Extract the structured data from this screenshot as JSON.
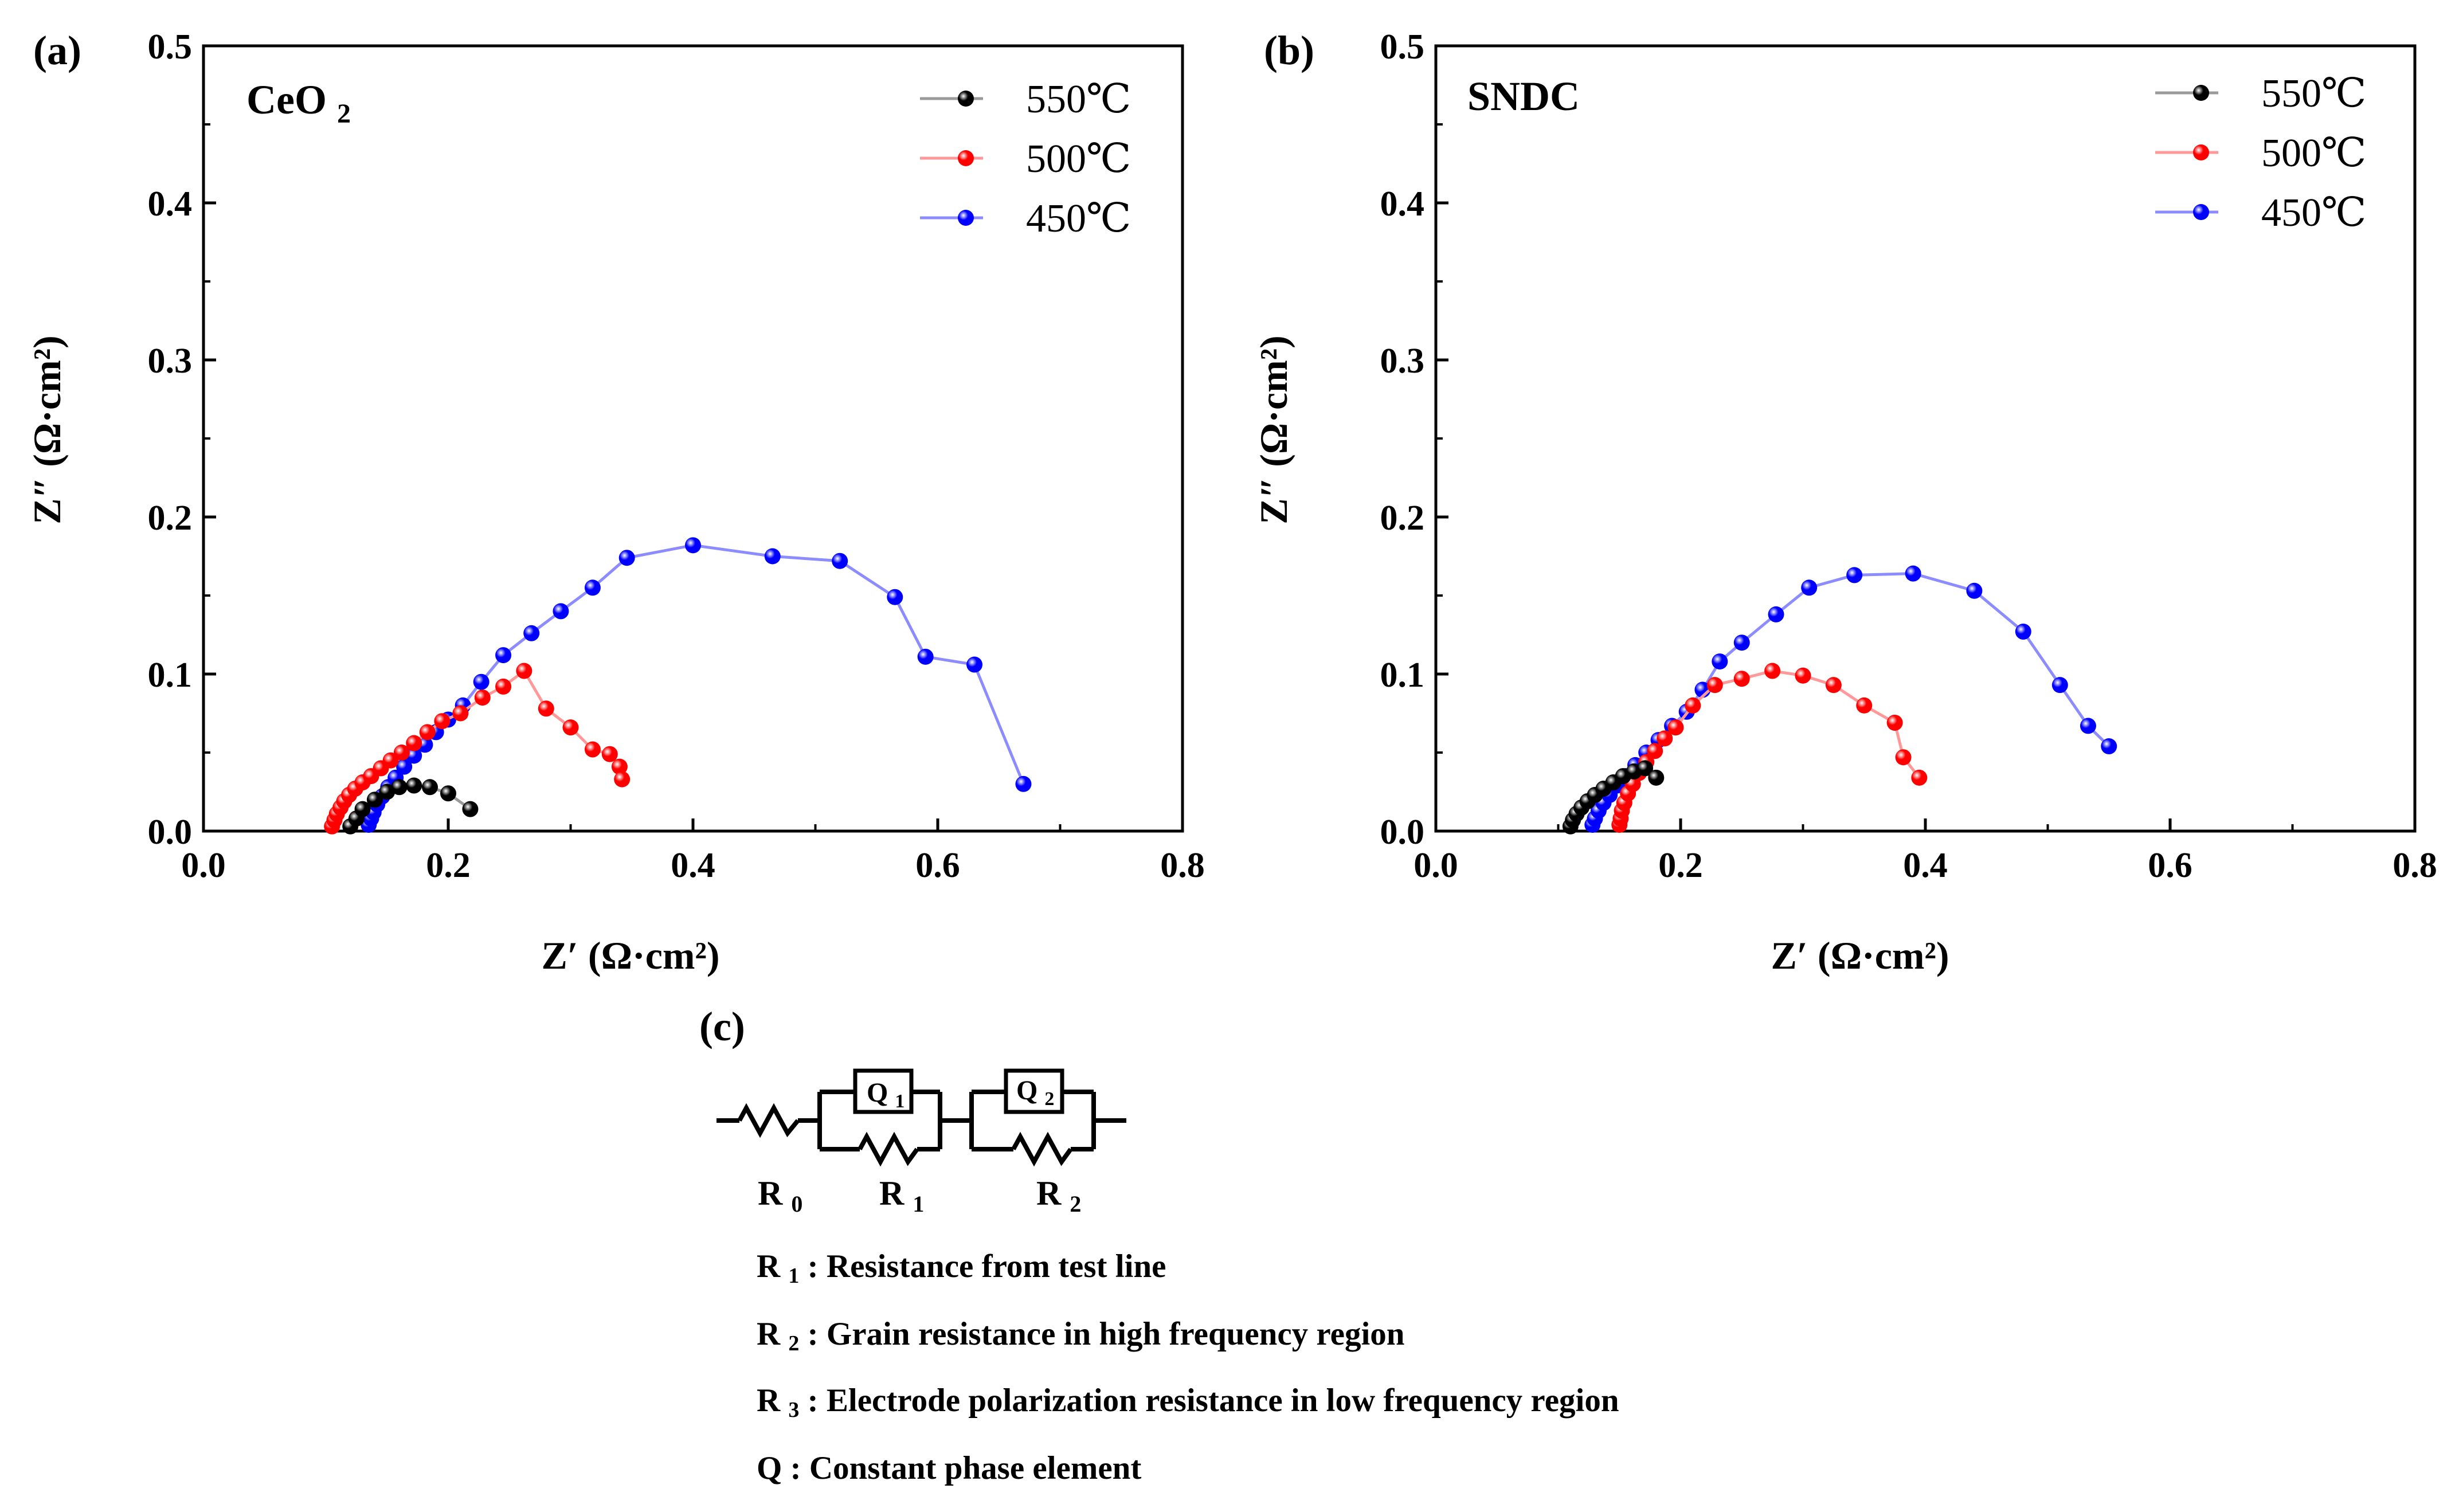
{
  "figure_labels": {
    "a": "(a)",
    "b": "(b)",
    "c": "(c)"
  },
  "chart_data": [
    {
      "id": "a",
      "type": "scatter",
      "mode": "lines+markers",
      "panel_label": "(a)",
      "inset_title": "CeO",
      "inset_title_subscript": "2",
      "xlabel": "Z′ (Ω·cm²)",
      "ylabel": "Z″ (Ω·cm²)",
      "xlim": [
        0,
        0.8
      ],
      "ylim": [
        0,
        0.5
      ],
      "xticks": [
        "0.0",
        "0.2",
        "0.4",
        "0.6",
        "0.8"
      ],
      "yticks": [
        "0.0",
        "0.1",
        "0.2",
        "0.3",
        "0.4",
        "0.5"
      ],
      "legend_position": "top-right",
      "series": [
        {
          "name": "550℃",
          "color": "#000000",
          "line_color": "#9a9a9a",
          "x": [
            0.12,
            0.125,
            0.13,
            0.14,
            0.15,
            0.16,
            0.172,
            0.185,
            0.2,
            0.218
          ],
          "y": [
            0.003,
            0.008,
            0.014,
            0.02,
            0.025,
            0.028,
            0.029,
            0.028,
            0.024,
            0.014
          ]
        },
        {
          "name": "500℃",
          "color": "#ff0000",
          "line_color": "#ff9999",
          "x": [
            0.105,
            0.107,
            0.109,
            0.112,
            0.115,
            0.119,
            0.124,
            0.13,
            0.137,
            0.145,
            0.153,
            0.162,
            0.172,
            0.183,
            0.195,
            0.21,
            0.228,
            0.245,
            0.262,
            0.28,
            0.3,
            0.318,
            0.332,
            0.34,
            0.342
          ],
          "y": [
            0.003,
            0.007,
            0.011,
            0.015,
            0.019,
            0.023,
            0.027,
            0.031,
            0.035,
            0.04,
            0.045,
            0.05,
            0.056,
            0.063,
            0.07,
            0.075,
            0.085,
            0.092,
            0.102,
            0.078,
            0.066,
            0.052,
            0.049,
            0.041,
            0.033
          ]
        },
        {
          "name": "450℃",
          "color": "#0000ff",
          "line_color": "#8c8cff",
          "x": [
            0.135,
            0.137,
            0.139,
            0.142,
            0.146,
            0.151,
            0.157,
            0.164,
            0.172,
            0.181,
            0.19,
            0.2,
            0.212,
            0.227,
            0.245,
            0.268,
            0.292,
            0.318,
            0.346,
            0.4,
            0.465,
            0.52,
            0.565,
            0.59,
            0.63,
            0.67
          ],
          "y": [
            0.004,
            0.008,
            0.012,
            0.017,
            0.022,
            0.028,
            0.034,
            0.041,
            0.048,
            0.055,
            0.063,
            0.071,
            0.08,
            0.095,
            0.112,
            0.126,
            0.14,
            0.155,
            0.174,
            0.182,
            0.175,
            0.172,
            0.149,
            0.111,
            0.106,
            0.03
          ]
        }
      ]
    },
    {
      "id": "b",
      "type": "scatter",
      "mode": "lines+markers",
      "panel_label": "(b)",
      "inset_title": "SNDC",
      "inset_title_subscript": "",
      "xlabel": "Z′ (Ω·cm²)",
      "ylabel": "Z″ (Ω·cm²)",
      "xlim": [
        0,
        0.8
      ],
      "ylim": [
        0,
        0.5
      ],
      "xticks": [
        "0.0",
        "0.2",
        "0.4",
        "0.6",
        "0.8"
      ],
      "yticks": [
        "0.0",
        "0.1",
        "0.2",
        "0.3",
        "0.4",
        "0.5"
      ],
      "legend_position": "top-right",
      "series": [
        {
          "name": "550℃",
          "color": "#000000",
          "line_color": "#9a9a9a",
          "x": [
            0.11,
            0.112,
            0.115,
            0.119,
            0.124,
            0.13,
            0.137,
            0.145,
            0.153,
            0.162,
            0.171,
            0.18
          ],
          "y": [
            0.003,
            0.007,
            0.011,
            0.015,
            0.019,
            0.023,
            0.027,
            0.031,
            0.035,
            0.038,
            0.04,
            0.034
          ]
        },
        {
          "name": "500℃",
          "color": "#ff0000",
          "line_color": "#ff9999",
          "x": [
            0.15,
            0.151,
            0.152,
            0.154,
            0.157,
            0.161,
            0.166,
            0.172,
            0.179,
            0.187,
            0.196,
            0.21,
            0.228,
            0.25,
            0.275,
            0.3,
            0.325,
            0.35,
            0.375,
            0.382,
            0.395
          ],
          "y": [
            0.004,
            0.008,
            0.013,
            0.018,
            0.024,
            0.03,
            0.037,
            0.044,
            0.051,
            0.059,
            0.066,
            0.08,
            0.093,
            0.097,
            0.102,
            0.099,
            0.093,
            0.08,
            0.069,
            0.047,
            0.034
          ]
        },
        {
          "name": "450℃",
          "color": "#0000ff",
          "line_color": "#8c8cff",
          "x": [
            0.128,
            0.13,
            0.133,
            0.137,
            0.142,
            0.148,
            0.155,
            0.163,
            0.172,
            0.182,
            0.193,
            0.205,
            0.218,
            0.232,
            0.25,
            0.278,
            0.305,
            0.342,
            0.39,
            0.44,
            0.48,
            0.51,
            0.533,
            0.55
          ],
          "y": [
            0.004,
            0.008,
            0.013,
            0.018,
            0.023,
            0.029,
            0.035,
            0.042,
            0.05,
            0.058,
            0.067,
            0.076,
            0.09,
            0.108,
            0.12,
            0.138,
            0.155,
            0.163,
            0.164,
            0.153,
            0.127,
            0.093,
            0.067,
            0.054
          ]
        }
      ]
    }
  ],
  "circuit": {
    "labels": {
      "r0_main": "R",
      "r0_sub": "0",
      "r1_main": "R",
      "r1_sub": "1",
      "r2_main": "R",
      "r2_sub": "2",
      "q1_main": "Q",
      "q1_sub": "1",
      "q2_main": "Q",
      "q2_sub": "2"
    },
    "notes": [
      {
        "symbol": "R",
        "sub": "1",
        "text": ": Resistance from test line"
      },
      {
        "symbol": "R",
        "sub": "2",
        "text": ": Grain resistance in high frequency region"
      },
      {
        "symbol": "R",
        "sub": "3",
        "text": ": Electrode polarization resistance in low frequency region"
      },
      {
        "symbol": "Q",
        "sub": "",
        "text": ": Constant phase element"
      }
    ]
  }
}
